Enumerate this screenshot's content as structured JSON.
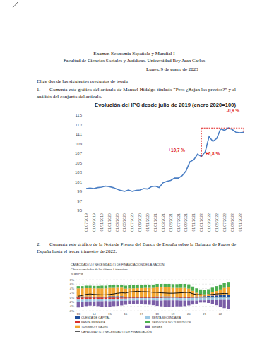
{
  "document": {
    "header": {
      "title": "Examen Economía Española y Mundial I",
      "faculty": "Facultad de Ciencias Sociales y Jurídicas. Universidad Rey Juan Carlos",
      "date": "Lunes, 9 de enero de 2023"
    },
    "instruction": "Elige dos de las siguientes preguntas de teoría",
    "questions": [
      {
        "number": "1.",
        "text": "Comenta este gráfico del artículo de Manuel Hidalgo titulado “Pero ¿Bajan los precios?” y el análisis del conjunto del artículo."
      },
      {
        "number": "2.",
        "text": "Comenta este gráfico de la Nota de Prensa del Banco de España sobre la Balanza de Pagos de España hasta el tercer trimestre de 2022."
      }
    ]
  },
  "chart_data": [
    {
      "type": "line",
      "title": "Evolución del IPC desde julio de 2019 (enero 2020=100)",
      "categories": [
        "01/07/2019",
        null,
        "01/09/2019",
        null,
        "01/11/2019",
        null,
        "01/01/2020",
        null,
        "01/03/2020",
        null,
        "01/05/2020",
        null,
        "01/07/2020",
        null,
        "01/09/2020",
        null,
        "01/11/2020",
        null,
        "01/01/2021",
        null,
        "01/03/2021",
        null,
        "01/05/2021",
        null,
        "01/07/2021",
        null,
        "01/09/2021",
        null,
        "01/11/2021",
        null,
        "01/01/2022",
        null,
        "01/03/2022",
        null,
        "01/05/2022",
        null,
        "01/07/2022",
        null,
        "01/09/2022",
        null,
        "01/11/2022",
        null
      ],
      "values": [
        99.6,
        99.7,
        99.6,
        99.8,
        99.9,
        100.1,
        100.0,
        99.8,
        99.5,
        99.2,
        99.0,
        99.3,
        99.0,
        99.2,
        99.3,
        99.6,
        99.5,
        100.0,
        100.1,
        99.8,
        100.8,
        101.1,
        101.3,
        101.8,
        101.8,
        102.3,
        103.3,
        105.2,
        105.6,
        106.8,
        106.3,
        107.3,
        110.5,
        109.5,
        110.1,
        112.1,
        111.8,
        112.3,
        112.0,
        111.4,
        111.3,
        111.4
      ],
      "color": "#4a7ec4",
      "ylim": [
        95,
        115
      ],
      "yticks": [
        95,
        97,
        99,
        101,
        103,
        105,
        107,
        109,
        111,
        113,
        115
      ],
      "grid": false,
      "annotations": [
        "+10,7 %",
        "+6,8 %",
        "-0,8 %"
      ]
    },
    {
      "type": "bar",
      "stacked": true,
      "title": "CAPACIDAD (+) / NECESIDAD (-) DE FINANCIACIÓN DE LA NACIÓN",
      "subtitle": "Cifras acumuladas de los últimos 4 trimestres",
      "y_label": "% del PIB",
      "categories": [
        "13",
        null,
        null,
        null,
        "14",
        null,
        null,
        null,
        "15",
        null,
        null,
        null,
        "16",
        null,
        null,
        null,
        "17",
        null,
        null,
        null,
        "18",
        null,
        null,
        null,
        "19",
        null,
        null,
        null,
        "20",
        null,
        null,
        null,
        "21",
        null,
        null,
        null,
        "22",
        null,
        null
      ],
      "ylim": [
        -6,
        8
      ],
      "yticks": [
        {
          "value": -6,
          "label": "-6%"
        },
        {
          "value": -4,
          "label": "-4%"
        },
        {
          "value": -2,
          "label": "-2%"
        },
        {
          "value": 0,
          "label": "0%"
        },
        {
          "value": 2,
          "label": "2%"
        },
        {
          "value": 4,
          "label": "4%"
        },
        {
          "value": 6,
          "label": "6%"
        },
        {
          "value": 8,
          "label": "8%"
        }
      ],
      "grid": true,
      "series": [
        {
          "name": "CUENTA DE CAPITAL",
          "color": "#1f4e9c",
          "values": [
            0.5,
            0.5,
            0.5,
            0.5,
            0.4,
            0.4,
            0.4,
            0.4,
            0.6,
            0.6,
            0.6,
            0.6,
            0.2,
            0.2,
            0.2,
            0.2,
            0.2,
            0.2,
            0.2,
            0.2,
            0.5,
            0.5,
            0.5,
            0.5,
            0.3,
            0.3,
            0.3,
            0.3,
            0.4,
            0.4,
            0.5,
            0.5,
            0.6,
            0.7,
            0.8,
            0.9,
            1.0,
            1.0,
            1.0
          ]
        },
        {
          "name": "RENTA PRIMARIA",
          "color": "#d9302c",
          "values": [
            -1.0,
            -1.0,
            -0.9,
            -0.9,
            -0.9,
            -0.8,
            -0.8,
            -0.7,
            -0.7,
            -0.6,
            -0.6,
            -0.5,
            -0.5,
            -0.4,
            -0.4,
            -0.3,
            -0.3,
            -0.3,
            -0.3,
            -0.3,
            -0.3,
            -0.3,
            -0.2,
            -0.2,
            -0.2,
            -0.2,
            -0.3,
            -0.3,
            -0.3,
            -0.2,
            -0.2,
            -0.1,
            -0.1,
            0.0,
            0.1,
            0.1,
            0.1,
            0.2,
            0.2
          ]
        },
        {
          "name": "TURISMO Y VIAJES",
          "color": "#f2a531",
          "values": [
            3.6,
            3.6,
            3.7,
            3.7,
            3.7,
            3.7,
            3.7,
            3.7,
            3.7,
            3.7,
            3.8,
            3.8,
            3.8,
            3.9,
            3.9,
            4.0,
            4.0,
            4.1,
            4.1,
            4.1,
            4.1,
            4.0,
            4.0,
            4.0,
            4.0,
            4.0,
            4.0,
            4.0,
            3.6,
            2.6,
            1.6,
            1.1,
            0.8,
            0.9,
            1.4,
            1.9,
            2.5,
            3.1,
            3.5
          ]
        },
        {
          "name": "CAPACIDAD (+) / NECESIDAD (-) DE FINANCIACIÓN",
          "type": "line",
          "color": "#111111",
          "values": [
            0.6,
            0.9,
            1.4,
            1.6,
            1.4,
            1.3,
            1.2,
            1.2,
            1.4,
            1.6,
            1.9,
            2.1,
            2.0,
            2.5,
            2.6,
            2.8,
            2.6,
            2.6,
            2.5,
            2.3,
            2.3,
            2.1,
            2.0,
            1.9,
            1.9,
            2.0,
            2.1,
            2.2,
            2.3,
            1.7,
            1.3,
            1.3,
            1.1,
            1.2,
            1.4,
            1.6,
            1.7,
            1.8,
            1.7
          ]
        },
        {
          "name": "RENTA SECUNDARIA",
          "color": "#9cc8e3",
          "values": [
            -0.9,
            -0.9,
            -0.9,
            -0.9,
            -0.9,
            -0.9,
            -0.9,
            -0.9,
            -1.0,
            -1.0,
            -1.0,
            -1.0,
            -1.0,
            -1.0,
            -1.0,
            -1.0,
            -1.0,
            -1.0,
            -1.0,
            -1.0,
            -1.1,
            -1.1,
            -1.1,
            -1.1,
            -1.1,
            -1.1,
            -1.1,
            -1.1,
            -1.1,
            -1.2,
            -1.2,
            -1.2,
            -1.2,
            -1.2,
            -1.2,
            -1.2,
            -1.1,
            -1.1,
            -1.1
          ]
        },
        {
          "name": "SERVICIOS NO TURÍSTICOS",
          "color": "#4caf50",
          "values": [
            1.0,
            1.0,
            1.1,
            1.1,
            1.1,
            1.1,
            1.2,
            1.2,
            1.2,
            1.2,
            1.3,
            1.3,
            1.3,
            1.4,
            1.4,
            1.4,
            1.4,
            1.5,
            1.5,
            1.5,
            1.5,
            1.6,
            1.6,
            1.6,
            1.7,
            1.7,
            1.8,
            1.8,
            1.9,
            1.9,
            2.0,
            2.0,
            2.0,
            2.1,
            2.1,
            2.2,
            2.2,
            2.3,
            2.3
          ]
        },
        {
          "name": "BIENES",
          "color": "#7b5ea7",
          "values": [
            -2.6,
            -2.3,
            -2.1,
            -1.9,
            -2.0,
            -2.2,
            -2.4,
            -2.5,
            -2.4,
            -2.3,
            -2.2,
            -2.1,
            -1.8,
            -1.6,
            -1.5,
            -1.5,
            -1.7,
            -1.9,
            -2.0,
            -2.2,
            -2.4,
            -2.6,
            -2.8,
            -2.9,
            -2.8,
            -2.7,
            -2.6,
            -2.5,
            -2.2,
            -1.8,
            -1.4,
            -1.0,
            -1.0,
            -1.3,
            -1.8,
            -2.3,
            -3.0,
            -3.7,
            -4.2
          ]
        }
      ]
    }
  ]
}
